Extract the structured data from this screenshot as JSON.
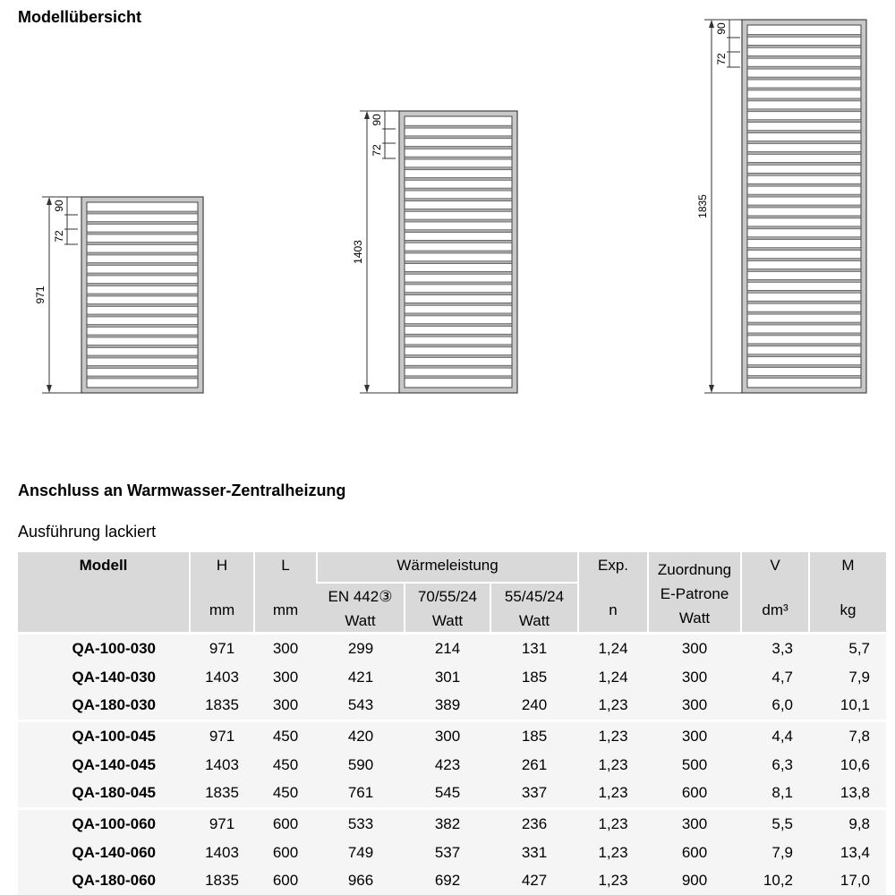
{
  "overview_title": "Modellübersicht",
  "drawings": [
    {
      "height_label": "971",
      "top_label": "90",
      "pitch_label": "72",
      "slats": 18
    },
    {
      "height_label": "1403",
      "top_label": "90",
      "pitch_label": "72",
      "slats": 26
    },
    {
      "height_label": "1835",
      "top_label": "90",
      "pitch_label": "72",
      "slats": 34
    }
  ],
  "section_title": "Anschluss an Warmwasser-Zentralheizung",
  "subtitle": "Ausführung lackiert",
  "table": {
    "headers": {
      "modell": "Modell",
      "h": "H",
      "h_unit": "mm",
      "l": "L",
      "l_unit": "mm",
      "waerme": "Wärmeleistung",
      "en": "EN 442③",
      "en_unit": "Watt",
      "t70": "70/55/24",
      "t70_unit": "Watt",
      "t55": "55/45/24",
      "t55_unit": "Watt",
      "exp": "Exp.",
      "exp_unit": "n",
      "zu": "Zuordnung",
      "zu2": "E-Patrone",
      "zu_unit": "Watt",
      "v": "V",
      "v_unit": "dm³",
      "m": "M",
      "m_unit": "kg"
    },
    "rows": [
      [
        "QA-100-030",
        "971",
        "300",
        "299",
        "214",
        "131",
        "1,24",
        "300",
        "3,3",
        "5,7"
      ],
      [
        "QA-140-030",
        "1403",
        "300",
        "421",
        "301",
        "185",
        "1,24",
        "300",
        "4,7",
        "7,9"
      ],
      [
        "QA-180-030",
        "1835",
        "300",
        "543",
        "389",
        "240",
        "1,23",
        "300",
        "6,0",
        "10,1"
      ],
      [
        "QA-100-045",
        "971",
        "450",
        "420",
        "300",
        "185",
        "1,23",
        "300",
        "4,4",
        "7,8"
      ],
      [
        "QA-140-045",
        "1403",
        "450",
        "590",
        "423",
        "261",
        "1,23",
        "500",
        "6,3",
        "10,6"
      ],
      [
        "QA-180-045",
        "1835",
        "450",
        "761",
        "545",
        "337",
        "1,23",
        "600",
        "8,1",
        "13,8"
      ],
      [
        "QA-100-060",
        "971",
        "600",
        "533",
        "382",
        "236",
        "1,23",
        "300",
        "5,5",
        "9,8"
      ],
      [
        "QA-140-060",
        "1403",
        "600",
        "749",
        "537",
        "331",
        "1,23",
        "600",
        "7,9",
        "13,4"
      ],
      [
        "QA-180-060",
        "1835",
        "600",
        "966",
        "692",
        "427",
        "1,23",
        "900",
        "10,2",
        "17,0"
      ]
    ]
  }
}
